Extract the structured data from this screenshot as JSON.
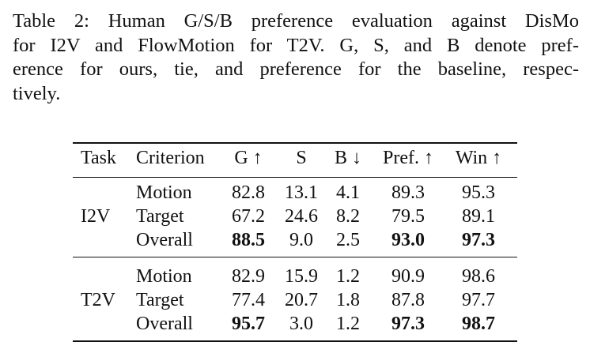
{
  "caption": {
    "lines": [
      "Table 2: Human G/S/B preference evaluation against DisMo",
      "for I2V and FlowMotion for T2V. G, S, and B denote pref-",
      "erence for ours, tie, and preference for the baseline, respec-",
      "tively."
    ]
  },
  "table": {
    "headers": [
      "Task",
      "Criterion",
      "G ↑",
      "S",
      "B ↓",
      "Pref. ↑",
      "Win ↑"
    ],
    "groups": [
      {
        "task": "I2V",
        "rows": [
          {
            "criterion": "Motion",
            "values": [
              "82.8",
              "13.1",
              "4.1",
              "89.3",
              "95.3"
            ],
            "bold": [
              false,
              false,
              false,
              false,
              false
            ]
          },
          {
            "criterion": "Target",
            "values": [
              "67.2",
              "24.6",
              "8.2",
              "79.5",
              "89.1"
            ],
            "bold": [
              false,
              false,
              false,
              false,
              false
            ]
          },
          {
            "criterion": "Overall",
            "values": [
              "88.5",
              "9.0",
              "2.5",
              "93.0",
              "97.3"
            ],
            "bold": [
              true,
              false,
              false,
              true,
              true
            ]
          }
        ]
      },
      {
        "task": "T2V",
        "rows": [
          {
            "criterion": "Motion",
            "values": [
              "82.9",
              "15.9",
              "1.2",
              "90.9",
              "98.6"
            ],
            "bold": [
              false,
              false,
              false,
              false,
              false
            ]
          },
          {
            "criterion": "Target",
            "values": [
              "77.4",
              "20.7",
              "1.8",
              "87.8",
              "97.7"
            ],
            "bold": [
              false,
              false,
              false,
              false,
              false
            ]
          },
          {
            "criterion": "Overall",
            "values": [
              "95.7",
              "3.0",
              "1.2",
              "97.3",
              "98.7"
            ],
            "bold": [
              true,
              false,
              false,
              true,
              true
            ]
          }
        ]
      }
    ]
  }
}
